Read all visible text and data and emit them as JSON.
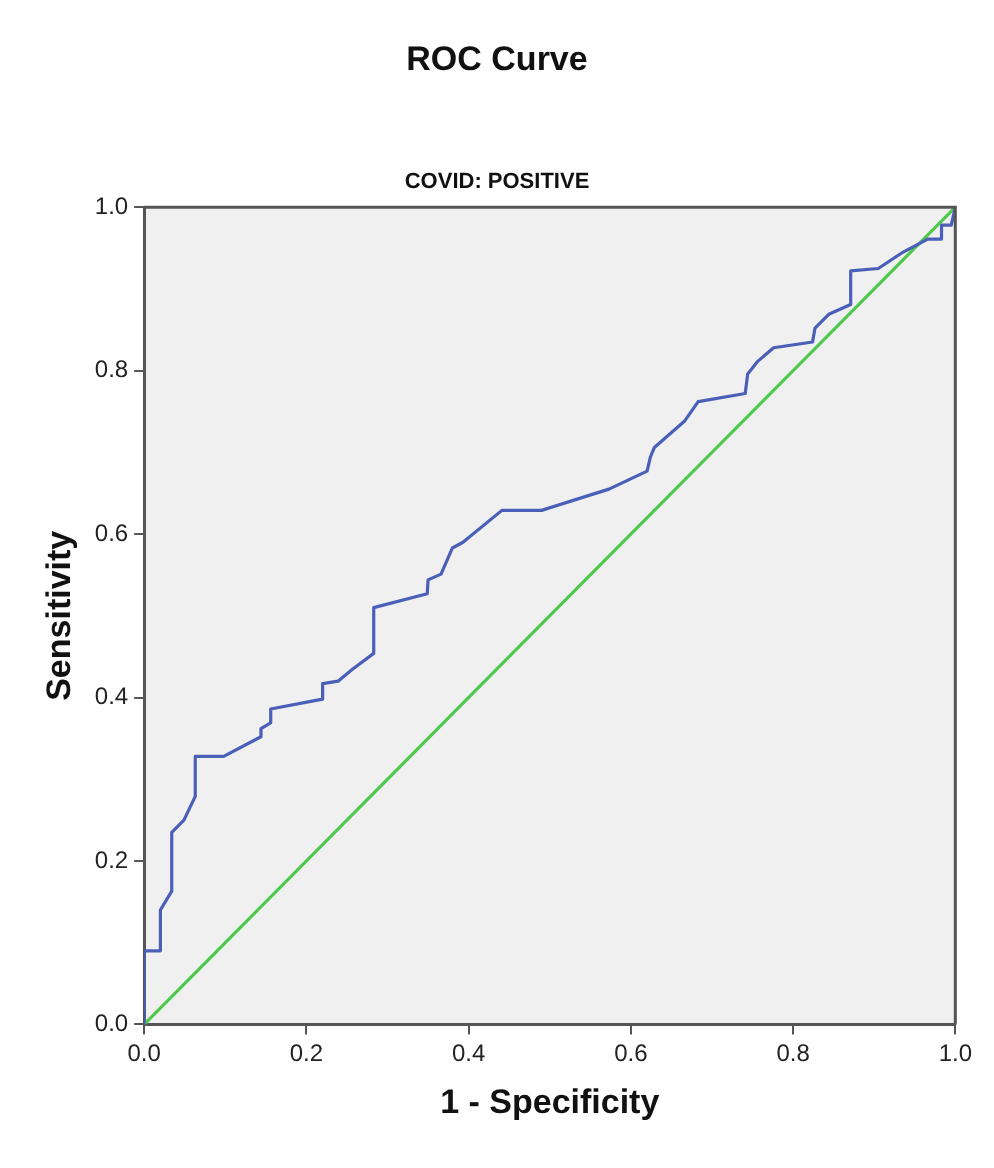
{
  "chart_data": {
    "type": "line",
    "title": "ROC Curve",
    "subtitle": "COVID: POSITIVE",
    "xlabel": "1 - Specificity",
    "ylabel": "Sensitivity",
    "xlim": [
      0,
      1
    ],
    "ylim": [
      0,
      1
    ],
    "xticks": [
      {
        "value": 0,
        "label": "0.0"
      },
      {
        "value": 0.2,
        "label": "0.2"
      },
      {
        "value": 0.4,
        "label": "0.4"
      },
      {
        "value": 0.6,
        "label": "0.6"
      },
      {
        "value": 0.8,
        "label": "0.8"
      },
      {
        "value": 1,
        "label": "1.0"
      }
    ],
    "yticks": [
      {
        "value": 0,
        "label": "0.0"
      },
      {
        "value": 0.2,
        "label": "0.2"
      },
      {
        "value": 0.4,
        "label": "0.4"
      },
      {
        "value": 0.6,
        "label": "0.6"
      },
      {
        "value": 0.8,
        "label": "0.8"
      },
      {
        "value": 1,
        "label": "1.0"
      }
    ],
    "grid": false,
    "legend": false,
    "marker": "none",
    "line_style": "solid",
    "series": [
      {
        "color": "#4a5fb8",
        "x": [
          0,
          0,
          0.02,
          0.02,
          0.034,
          0.034,
          0.049,
          0.063,
          0.063,
          0.098,
          0.144,
          0.144,
          0.156,
          0.156,
          0.22,
          0.22,
          0.239,
          0.256,
          0.283,
          0.283,
          0.349,
          0.35,
          0.366,
          0.38,
          0.393,
          0.441,
          0.49,
          0.573,
          0.62,
          0.624,
          0.629,
          0.666,
          0.683,
          0.741,
          0.744,
          0.756,
          0.776,
          0.824,
          0.827,
          0.844,
          0.871,
          0.871,
          0.905,
          0.934,
          0.966,
          0.983,
          0.983,
          0.995,
          1
        ],
        "values": [
          0,
          0.09,
          0.09,
          0.14,
          0.163,
          0.235,
          0.25,
          0.279,
          0.328,
          0.328,
          0.352,
          0.362,
          0.369,
          0.386,
          0.398,
          0.417,
          0.42,
          0.434,
          0.454,
          0.51,
          0.527,
          0.544,
          0.551,
          0.583,
          0.59,
          0.629,
          0.629,
          0.655,
          0.677,
          0.694,
          0.706,
          0.738,
          0.762,
          0.772,
          0.796,
          0.811,
          0.828,
          0.835,
          0.852,
          0.869,
          0.881,
          0.922,
          0.925,
          0.944,
          0.961,
          0.961,
          0.978,
          0.978,
          1
        ]
      },
      {
        "color": "#4ec94e",
        "x": [
          0,
          1
        ],
        "values": [
          0,
          1
        ]
      }
    ]
  }
}
